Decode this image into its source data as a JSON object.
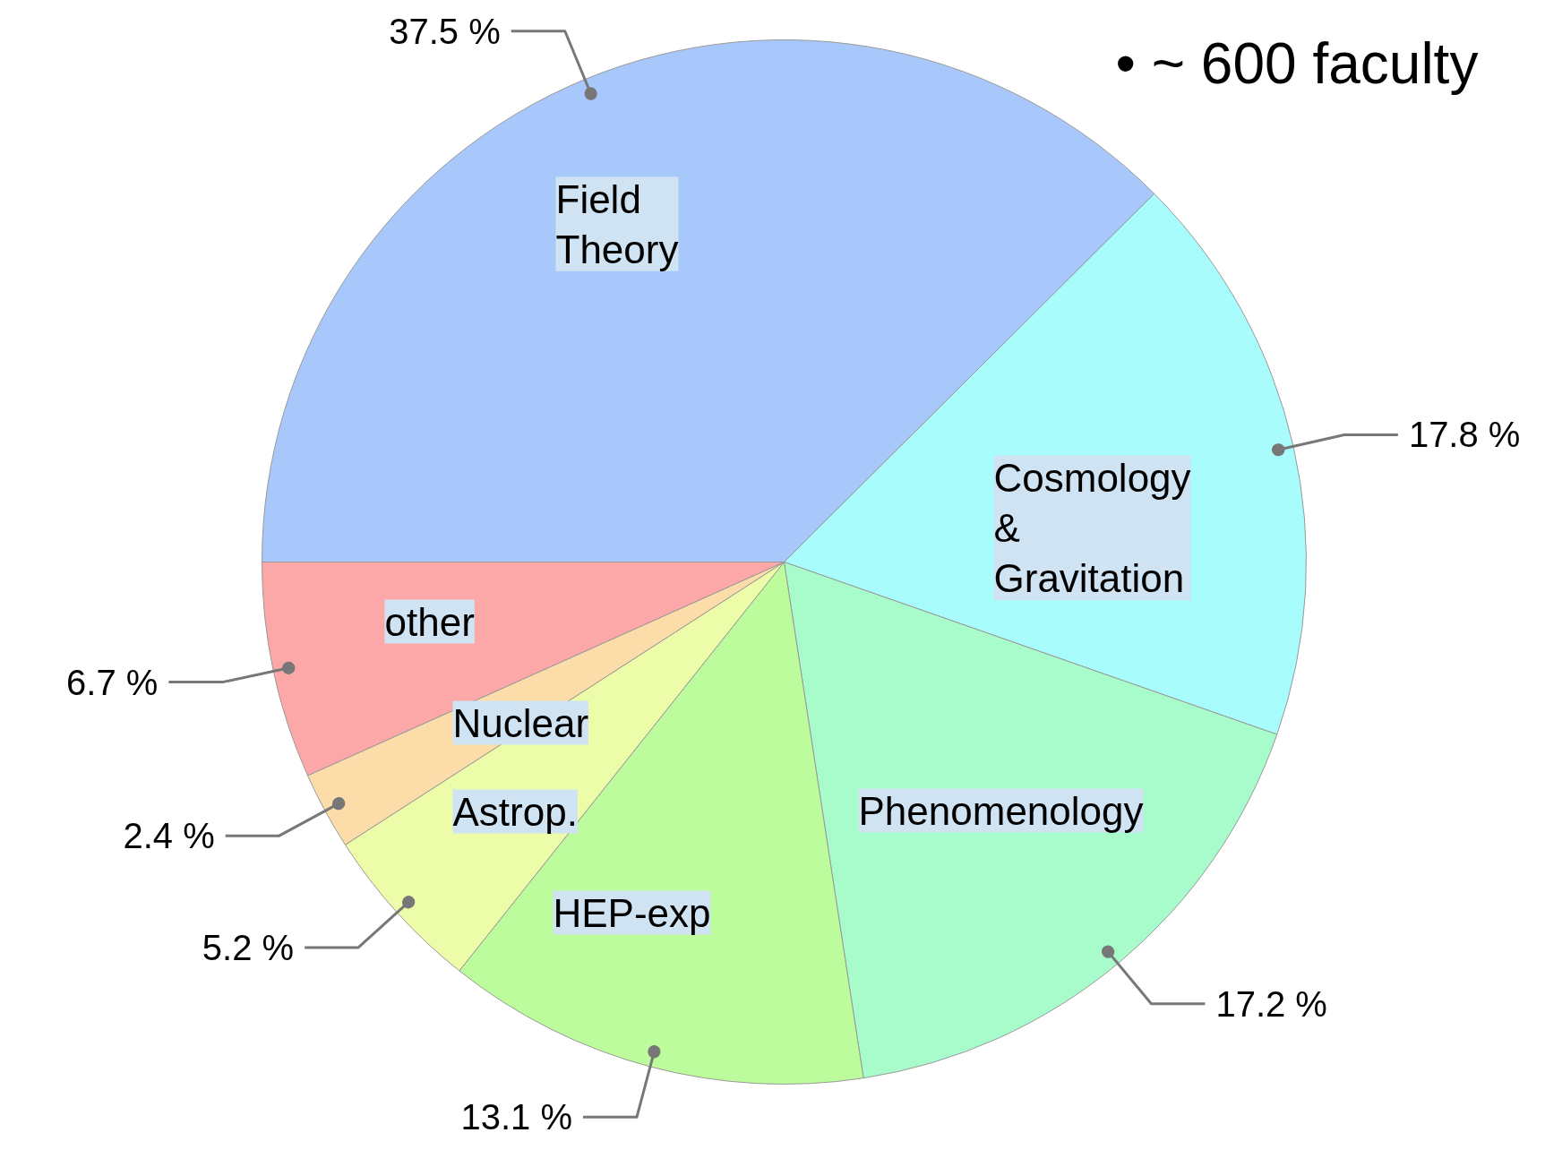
{
  "chart_data": {
    "type": "pie",
    "categories": [
      "Field Theory",
      "Cosmology & Gravitation",
      "Phenomenology",
      "HEP-exp",
      "Astrop.",
      "Nuclear",
      "other"
    ],
    "values": [
      37.5,
      17.8,
      17.2,
      13.1,
      5.2,
      2.4,
      6.7
    ],
    "colors": [
      "#a8c8fc",
      "#a8fcfc",
      "#a8fccc",
      "#bcfc9c",
      "#ecfca8",
      "#fcdca8",
      "#fca8a8"
    ],
    "value_labels": [
      "37.5 %",
      "17.8 %",
      "17.2 %",
      "13.1 %",
      "5.2 %",
      "2.4 %",
      "6.7 %"
    ],
    "annotations": [
      "•  ~ 600 faculty"
    ]
  }
}
